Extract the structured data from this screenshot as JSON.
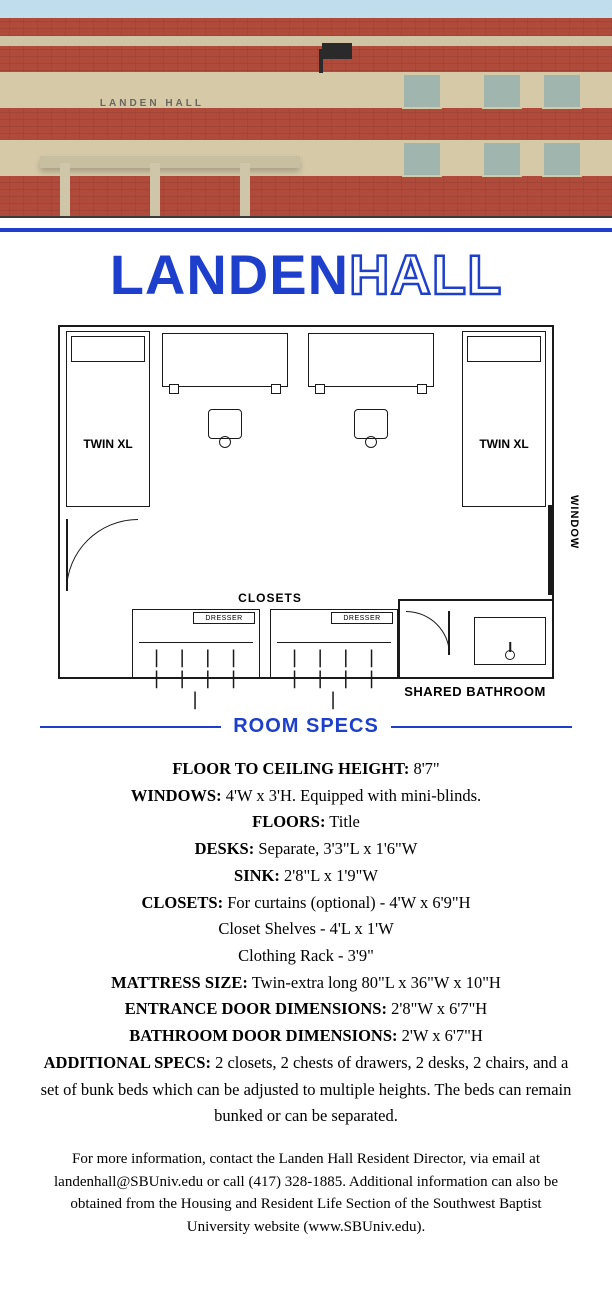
{
  "title": {
    "bold": "LANDEN",
    "outline": "HALL"
  },
  "photo": {
    "sign": "LANDEN HALL"
  },
  "floorplan": {
    "bed_label": "TWIN XL",
    "closets_label": "CLOSETS",
    "dresser_label": "DRESSER",
    "window_label": "WINDOW",
    "bathroom_label": "SHARED BATHROOM",
    "outline_color": "#1a1a1a"
  },
  "section_header": "ROOM SPECS",
  "colors": {
    "brand_blue": "#1e3fcc",
    "text": "#111111",
    "brick": "#b04a3a",
    "tan": "#d5c9a8",
    "sky": "#bfddec"
  },
  "typography": {
    "title_fontsize": 56,
    "body_fontsize": 16.5,
    "label_fontsize": 12
  },
  "specs": [
    {
      "label": "FLOOR TO CEILING HEIGHT:",
      "value": " 8'7\""
    },
    {
      "label": "WINDOWS:",
      "value": " 4'W x 3'H. Equipped with mini-blinds."
    },
    {
      "label": "FLOORS:",
      "value": " Title"
    },
    {
      "label": "DESKS:",
      "value": " Separate, 3'3\"L x 1'6\"W"
    },
    {
      "label": "SINK:",
      "value": " 2'8\"L x 1'9\"W"
    },
    {
      "label": "CLOSETS:",
      "value": " For curtains (optional) - 4'W x 6'9\"H"
    },
    {
      "label": "",
      "value": "Closet Shelves - 4'L x 1'W"
    },
    {
      "label": "",
      "value": "Clothing Rack - 3'9\""
    },
    {
      "label": "MATTRESS SIZE:",
      "value": " Twin-extra long 80\"L x 36\"W x 10\"H"
    },
    {
      "label": "ENTRANCE DOOR DIMENSIONS:",
      "value": " 2'8\"W x 6'7\"H"
    },
    {
      "label": "BATHROOM DOOR DIMENSIONS:",
      "value": " 2'W x 6'7\"H"
    },
    {
      "label": "ADDITIONAL SPECS:",
      "value": " 2 closets, 2 chests of drawers, 2 desks, 2 chairs, and a set of bunk beds which can be adjusted to multiple heights. The beds can remain bunked or can be separated."
    }
  ],
  "footer": "For more information, contact the Landen Hall Resident Director, via email at landenhall@SBUniv.edu or call (417) 328-1885. Additional information can also be obtained from the Housing and Resident Life Section of the Southwest Baptist University website (www.SBUniv.edu)."
}
